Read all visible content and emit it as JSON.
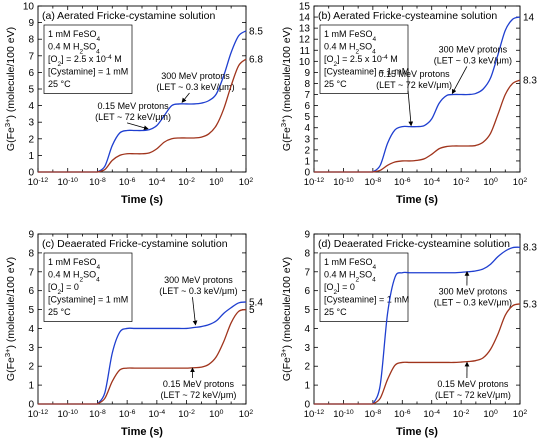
{
  "chart_data": [
    {
      "type": "line",
      "panel_label": "(a)",
      "title": "Aerated Fricke-cystamine solution",
      "xlabel": "Time (s)",
      "ylabel": "G(Fe3+) (molecule/100 eV)",
      "xscale": "log",
      "xlim_exponents": [
        -12,
        2
      ],
      "xtick_exponents": [
        -12,
        -10,
        -8,
        -6,
        -4,
        -2,
        0,
        2
      ],
      "ylim": [
        0,
        10
      ],
      "yticks": [
        0,
        1,
        2,
        3,
        4,
        5,
        6,
        7,
        8,
        9,
        10
      ],
      "conditions": [
        "1 mM FeSO4",
        "0.4 M H2SO4",
        "[O2] = 2.5 x 10-4 M",
        "[Cystamine] = 1 mM",
        "25 °C"
      ],
      "series": [
        {
          "name": "300 MeV protons (LET ~ 0.3 keV/μm)",
          "line1": "300 MeV protons",
          "line2": "(LET ~ 0.3 keV/μm)",
          "color": "#1f3fd0",
          "end_value": 8.5,
          "end_label": "8.5",
          "x_exponents": [
            -8,
            -7.5,
            -7,
            -6.5,
            -6,
            -5.5,
            -5,
            -4.5,
            -4,
            -3.5,
            -3,
            -2.5,
            -2,
            -1.5,
            -1,
            -0.5,
            0,
            0.5,
            1,
            1.5,
            2
          ],
          "y": [
            0.0,
            0.35,
            1.6,
            2.35,
            2.5,
            2.5,
            2.5,
            2.55,
            2.8,
            3.4,
            4.0,
            4.1,
            4.1,
            4.1,
            4.15,
            4.3,
            4.7,
            5.8,
            7.2,
            8.2,
            8.5
          ]
        },
        {
          "name": "0.15 MeV protons (LET ~ 72 keV/μm)",
          "line1": "0.15 MeV protons",
          "line2": "(LET ~ 72 keV/μm)",
          "color": "#a0341c",
          "end_value": 6.8,
          "end_label": "6.8",
          "x_exponents": [
            -8,
            -7.5,
            -7,
            -6.5,
            -6,
            -5.5,
            -5,
            -4.5,
            -4,
            -3.5,
            -3,
            -2.5,
            -2,
            -1.5,
            -1,
            -0.5,
            0,
            0.5,
            1,
            1.5,
            2
          ],
          "y": [
            0.0,
            0.15,
            0.7,
            1.0,
            1.1,
            1.1,
            1.1,
            1.15,
            1.4,
            1.8,
            2.0,
            2.05,
            2.05,
            2.05,
            2.1,
            2.3,
            2.8,
            3.8,
            5.2,
            6.4,
            6.8
          ]
        }
      ]
    },
    {
      "type": "line",
      "panel_label": "(b)",
      "title": "Aerated Fricke-cysteamine solution",
      "xlabel": "Time (s)",
      "ylabel": "G(Fe3+) (molecule/100 eV)",
      "xscale": "log",
      "xlim_exponents": [
        -12,
        2
      ],
      "xtick_exponents": [
        -12,
        -10,
        -8,
        -6,
        -4,
        -2,
        0,
        2
      ],
      "ylim": [
        0,
        15
      ],
      "yticks": [
        0,
        1,
        2,
        3,
        4,
        5,
        6,
        7,
        8,
        9,
        10,
        11,
        12,
        13,
        14,
        15
      ],
      "conditions": [
        "1 mM FeSO4",
        "0.4 M H2SO4",
        "[O2] = 2.5 x 10-4 M",
        "[Cysteamine] = 1 mM",
        "25 °C"
      ],
      "series": [
        {
          "name": "300 MeV protons (LET ~ 0.3 keV/μm)",
          "line1": "300 MeV protons",
          "line2": "(LET ~ 0.3 keV/μm)",
          "color": "#1f3fd0",
          "end_value": 14,
          "end_label": "14",
          "x_exponents": [
            -8,
            -7.5,
            -7,
            -6.5,
            -6,
            -5.5,
            -5,
            -4.5,
            -4,
            -3.5,
            -3,
            -2.5,
            -2,
            -1.5,
            -1,
            -0.5,
            0,
            0.5,
            1,
            1.5,
            2
          ],
          "y": [
            0.0,
            0.6,
            2.6,
            3.8,
            4.1,
            4.1,
            4.1,
            4.2,
            4.8,
            6.2,
            6.9,
            7.0,
            7.0,
            7.0,
            7.1,
            7.5,
            8.5,
            10.6,
            12.8,
            13.8,
            14.0
          ]
        },
        {
          "name": "0.15 MeV protons (LET ~ 72 keV/μm)",
          "line1": "0.15 MeV protons",
          "line2": "(LET ~ 72 keV/μm)",
          "color": "#a0341c",
          "end_value": 8.3,
          "end_label": "8.3",
          "x_exponents": [
            -8,
            -7.5,
            -7,
            -6.5,
            -6,
            -5.5,
            -5,
            -4.5,
            -4,
            -3.5,
            -3,
            -2.5,
            -2,
            -1.5,
            -1,
            -0.5,
            0,
            0.5,
            1,
            1.5,
            2
          ],
          "y": [
            0.0,
            0.15,
            0.6,
            0.9,
            1.0,
            1.0,
            1.05,
            1.2,
            1.6,
            2.1,
            2.3,
            2.35,
            2.35,
            2.35,
            2.4,
            2.7,
            3.5,
            5.2,
            7.0,
            8.0,
            8.3
          ]
        }
      ]
    },
    {
      "type": "line",
      "panel_label": "(c)",
      "title": "Deaerated Fricke-cystamine solution",
      "xlabel": "Time (s)",
      "ylabel": "G(Fe3+) (molecule/100 eV)",
      "xscale": "log",
      "xlim_exponents": [
        -12,
        2
      ],
      "xtick_exponents": [
        -12,
        -10,
        -8,
        -6,
        -4,
        -2,
        0,
        2
      ],
      "ylim": [
        0,
        9
      ],
      "yticks": [
        0,
        1,
        2,
        3,
        4,
        5,
        6,
        7,
        8,
        9
      ],
      "conditions": [
        "1 mM FeSO4",
        "0.4 M H2SO4",
        "[O2] = 0",
        "[Cystamine] = 1 mM",
        "25 °C"
      ],
      "series": [
        {
          "name": "300 MeV protons (LET ~ 0.3 keV/μm)",
          "line1": "300 MeV protons",
          "line2": "(LET ~ 0.3 keV/μm)",
          "color": "#1f3fd0",
          "end_value": 5.4,
          "end_label": "5.4",
          "x_exponents": [
            -8,
            -7.5,
            -7,
            -6.5,
            -6,
            -5.5,
            -5,
            -4.5,
            -4,
            -3.5,
            -3,
            -2.5,
            -2,
            -1.5,
            -1,
            -0.5,
            0,
            0.5,
            1,
            1.5,
            2
          ],
          "y": [
            0.0,
            0.6,
            2.7,
            3.8,
            4.0,
            4.0,
            4.0,
            4.0,
            4.0,
            4.0,
            4.0,
            4.0,
            4.0,
            4.05,
            4.1,
            4.2,
            4.4,
            4.8,
            5.1,
            5.35,
            5.4
          ]
        },
        {
          "name": "0.15 MeV protons (LET ~ 72 keV/μm)",
          "line1": "0.15 MeV protons",
          "line2": "(LET ~ 72 keV/μm)",
          "color": "#a0341c",
          "end_value": 5,
          "end_label": "5",
          "x_exponents": [
            -8,
            -7.5,
            -7,
            -6.5,
            -6,
            -5.5,
            -5,
            -4.5,
            -4,
            -3.5,
            -3,
            -2.5,
            -2,
            -1.5,
            -1,
            -0.5,
            0,
            0.5,
            1,
            1.5,
            2
          ],
          "y": [
            0.0,
            0.3,
            1.2,
            1.8,
            1.9,
            1.9,
            1.9,
            1.9,
            1.9,
            1.9,
            1.9,
            1.9,
            1.9,
            1.92,
            1.95,
            2.1,
            2.5,
            3.3,
            4.3,
            4.9,
            5.0
          ]
        }
      ]
    },
    {
      "type": "line",
      "panel_label": "(d)",
      "title": "Deaerated Fricke-cysteamine solution",
      "xlabel": "Time (s)",
      "ylabel": "G(Fe3+) (molecule/100 eV)",
      "xscale": "log",
      "xlim_exponents": [
        -12,
        2
      ],
      "xtick_exponents": [
        -12,
        -10,
        -8,
        -6,
        -4,
        -2,
        0,
        2
      ],
      "ylim": [
        0,
        9
      ],
      "yticks": [
        0,
        1,
        2,
        3,
        4,
        5,
        6,
        7,
        8,
        9
      ],
      "conditions": [
        "1 mM FeSO4",
        "0.4 M H2SO4",
        "[O2] = 0",
        "[Cysteamine] = 1 mM",
        "25 °C"
      ],
      "series": [
        {
          "name": "300 MeV protons (LET ~ 0.3 keV/μm)",
          "line1": "300 MeV protons",
          "line2": "(LET ~ 0.3 keV/μm)",
          "color": "#1f3fd0",
          "end_value": 8.3,
          "end_label": "8.3",
          "x_exponents": [
            -8,
            -7.5,
            -7,
            -6.5,
            -6,
            -5.5,
            -5,
            -4.5,
            -4,
            -3.5,
            -3,
            -2.5,
            -2,
            -1.5,
            -1,
            -0.5,
            0,
            0.5,
            1,
            1.5,
            2
          ],
          "y": [
            0.0,
            1.0,
            4.8,
            6.7,
            6.95,
            6.95,
            6.95,
            6.95,
            6.95,
            6.95,
            6.95,
            6.95,
            6.97,
            7.0,
            7.05,
            7.15,
            7.4,
            7.8,
            8.1,
            8.28,
            8.3
          ]
        },
        {
          "name": "0.15 MeV protons (LET ~ 72 keV/μm)",
          "line1": "0.15 MeV protons",
          "line2": "(LET ~ 72 keV/μm)",
          "color": "#a0341c",
          "end_value": 5.3,
          "end_label": "5.3",
          "x_exponents": [
            -8,
            -7.5,
            -7,
            -6.5,
            -6,
            -5.5,
            -5,
            -4.5,
            -4,
            -3.5,
            -3,
            -2.5,
            -2,
            -1.5,
            -1,
            -0.5,
            0,
            0.5,
            1,
            1.5,
            2
          ],
          "y": [
            0.0,
            0.3,
            1.3,
            2.05,
            2.2,
            2.2,
            2.2,
            2.2,
            2.2,
            2.2,
            2.2,
            2.2,
            2.22,
            2.25,
            2.3,
            2.45,
            2.9,
            3.7,
            4.7,
            5.2,
            5.3
          ]
        }
      ]
    }
  ]
}
